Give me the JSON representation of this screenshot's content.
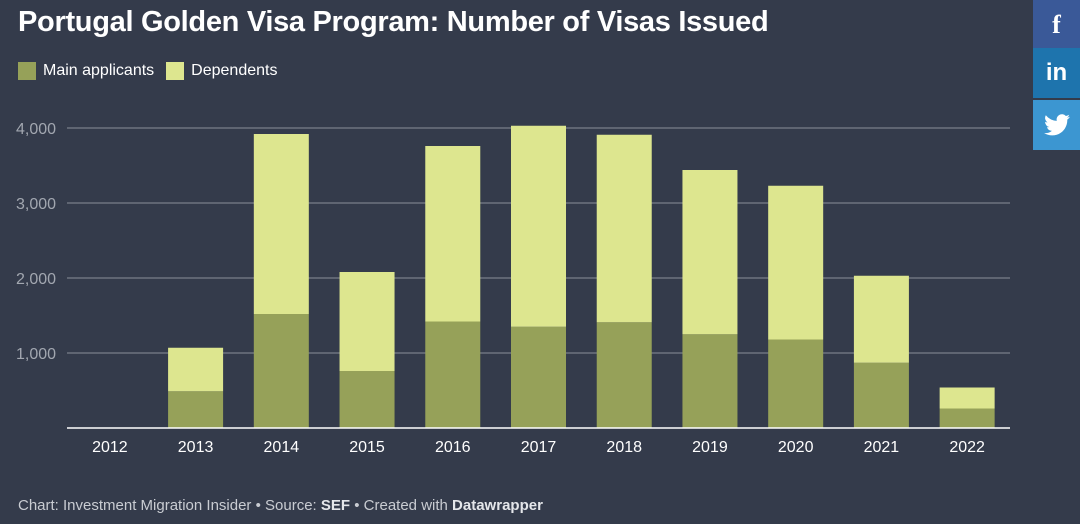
{
  "header": {
    "title": "Portugal Golden Visa Program: Number of Visas Issued"
  },
  "legend": [
    {
      "label": "Main applicants",
      "color": "#96a159"
    },
    {
      "label": "Dependents",
      "color": "#dde68f"
    }
  ],
  "footer": {
    "prefix": "Chart: Investment Migration Insider • Source: ",
    "source": "SEF",
    "middle": " • Created with ",
    "tool": "Datawrapper"
  },
  "share": {
    "facebook": "f",
    "linkedin": "in",
    "twitter_icon": "twitter-bird-icon"
  },
  "chart_data": {
    "type": "bar",
    "stacked": true,
    "title": "Portugal Golden Visa Program: Number of Visas Issued",
    "categories": [
      "2012",
      "2013",
      "2014",
      "2015",
      "2016",
      "2017",
      "2018",
      "2019",
      "2020",
      "2021",
      "2022"
    ],
    "series": [
      {
        "name": "Main applicants",
        "color": "#96a159",
        "values": [
          0,
          490,
          1520,
          760,
          1420,
          1350,
          1410,
          1250,
          1180,
          870,
          260
        ]
      },
      {
        "name": "Dependents",
        "color": "#dde68f",
        "values": [
          0,
          580,
          2400,
          1320,
          2340,
          2680,
          2500,
          2190,
          2050,
          1160,
          280
        ]
      }
    ],
    "ylim": [
      0,
      4000
    ],
    "yticks": [
      1000,
      2000,
      3000,
      4000
    ],
    "ytick_labels": [
      "1,000",
      "2,000",
      "3,000",
      "4,000"
    ],
    "grid": true,
    "legend_position": "top-left",
    "colors": {
      "grid": "#8a8f9a",
      "axis": "#ffffff",
      "tick_label": "#a2a7b0",
      "x_label": "#ffffff"
    }
  }
}
